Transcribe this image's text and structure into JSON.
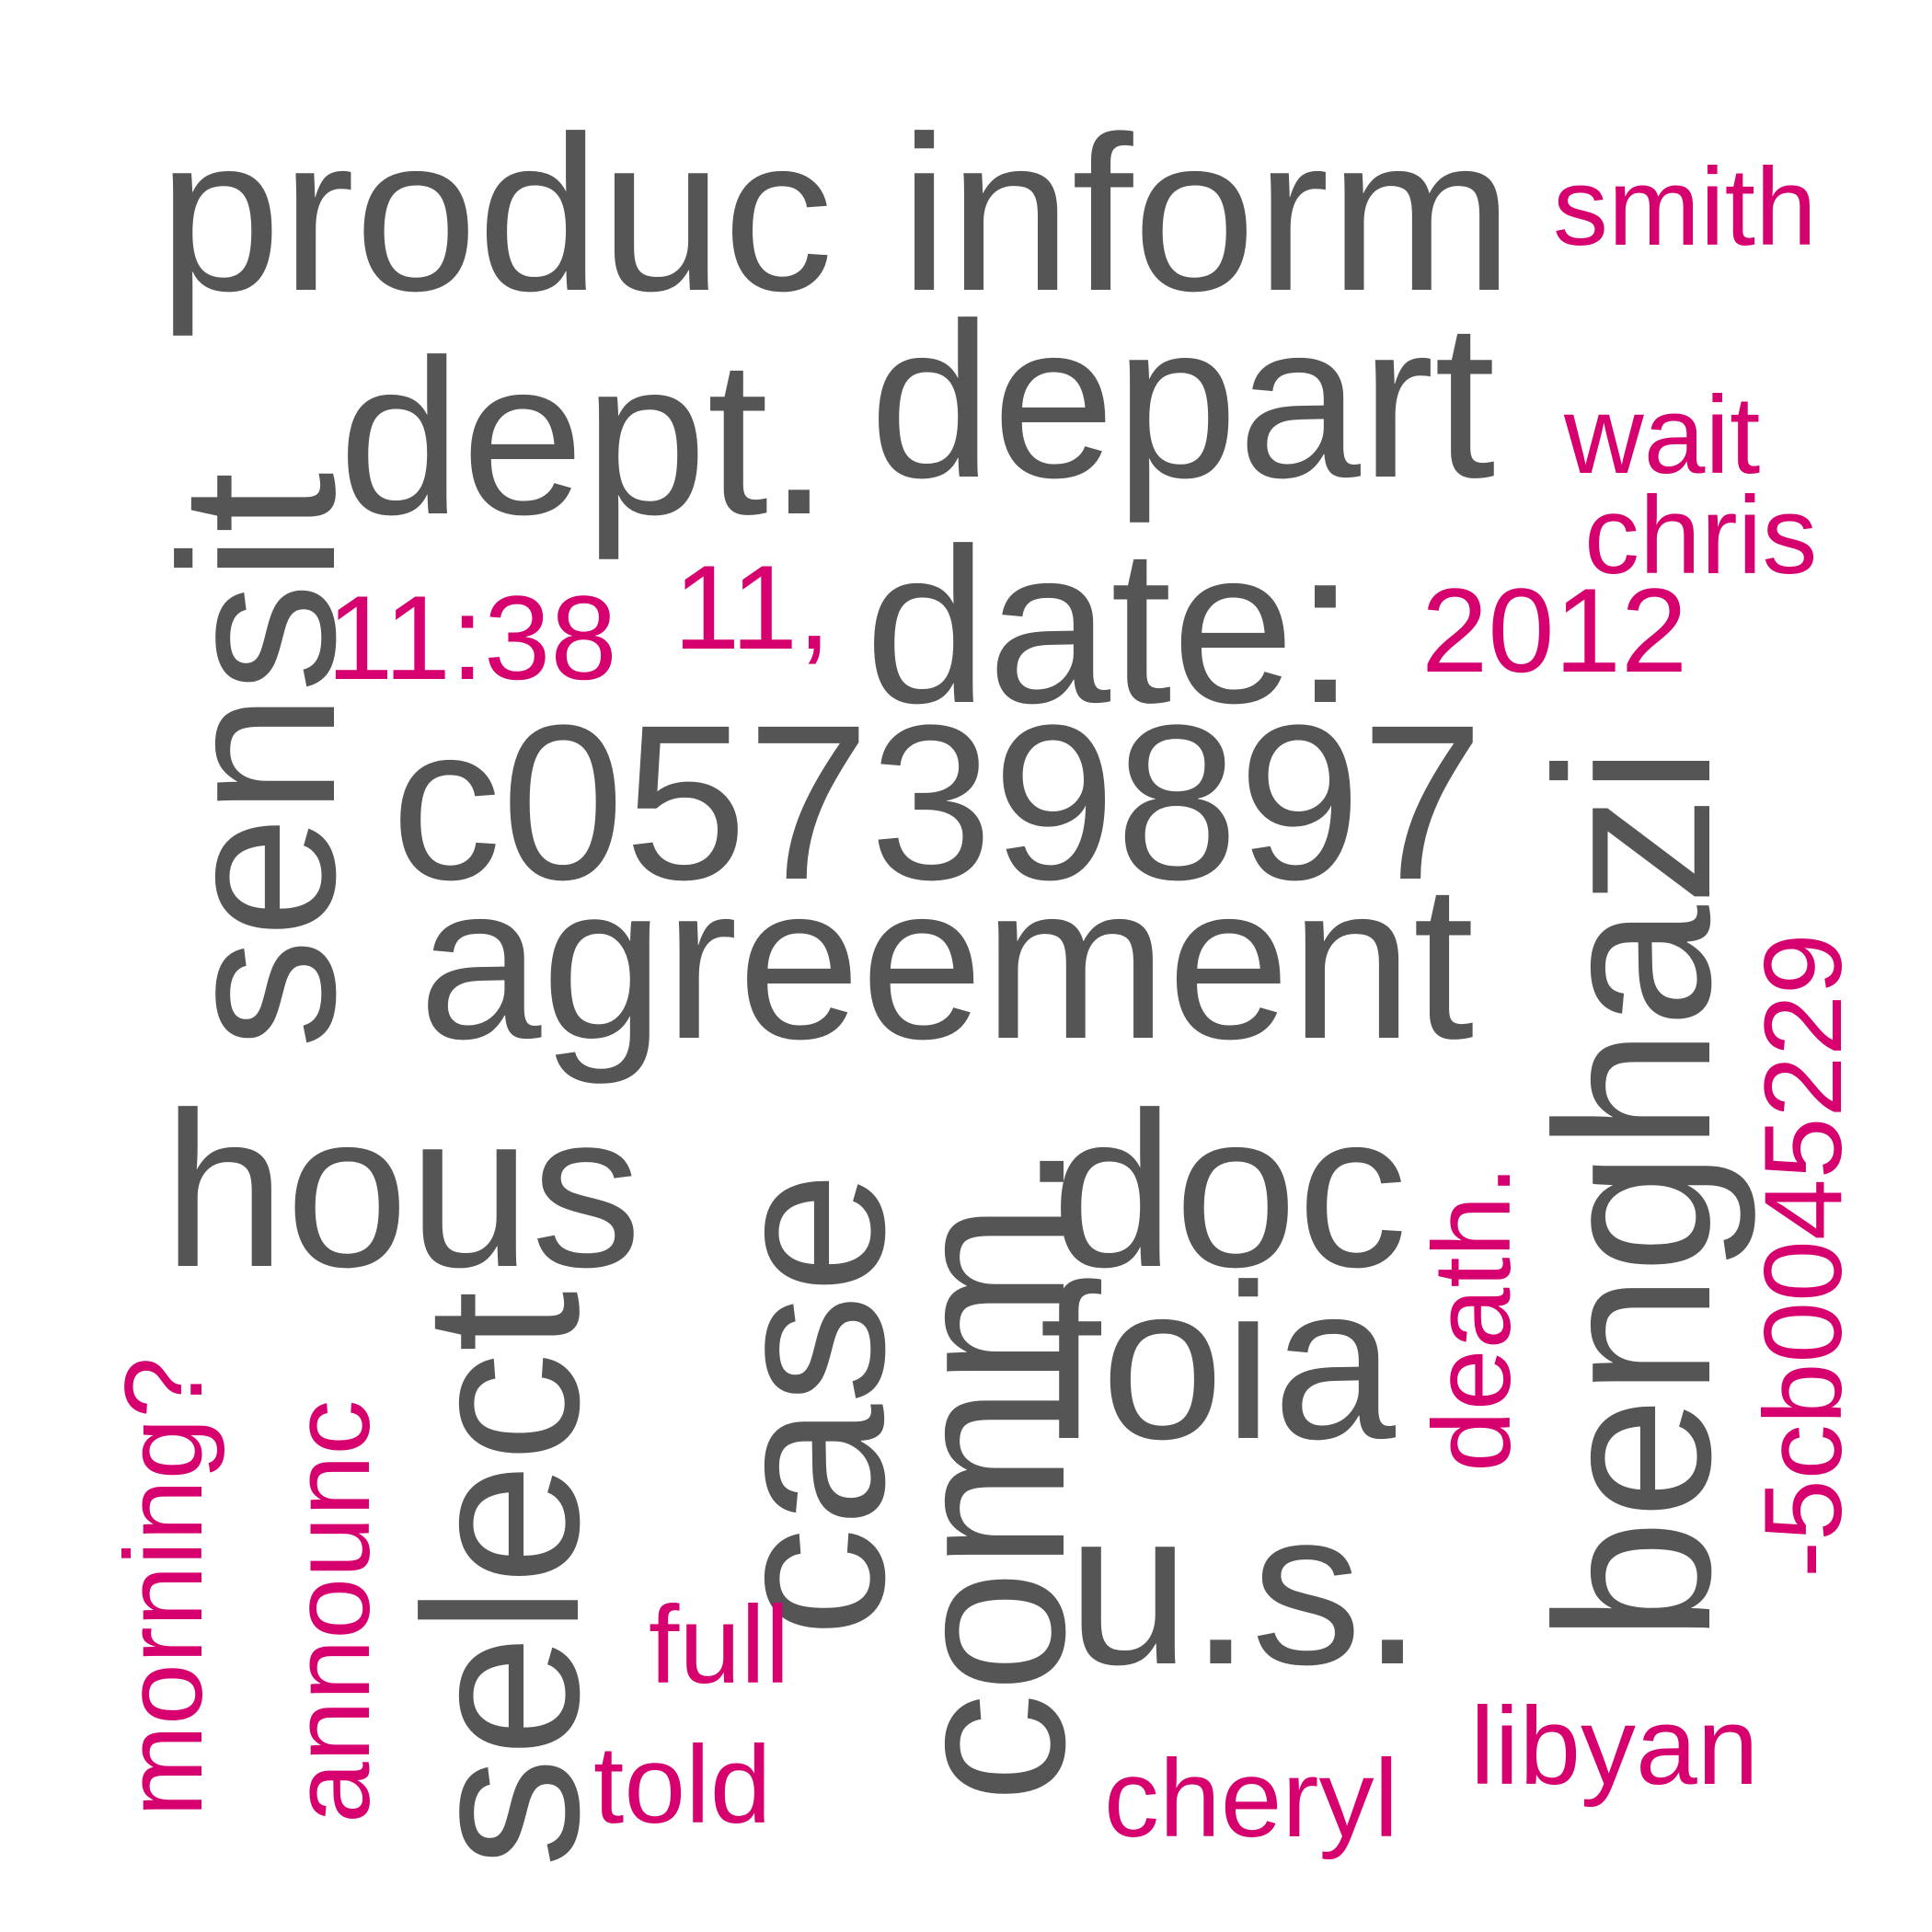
{
  "colors": {
    "primary": "#555555",
    "accent": "#d6006e",
    "background": "#ffffff"
  },
  "words": {
    "produc": "produc",
    "inform": "inform",
    "smith": "smith",
    "dept": "dept.",
    "depart": "depart",
    "wait": "wait",
    "chris": "chris",
    "sensit": "sensit",
    "time": "11:38",
    "eleven": "11,",
    "date": "date:",
    "year": "2012",
    "c05739897": "c05739897",
    "benghazi": "benghazi",
    "code": "-5cb0045229",
    "agreement": "agreement",
    "hous": "hous",
    "case": "case",
    "comm": "comm.",
    "doc": "doc",
    "death": "death.",
    "foia": "foia",
    "select": "select",
    "morning": "morning?",
    "announc": "announc",
    "us": "u.s.",
    "full": "full",
    "told": "told",
    "cheryl": "cheryl",
    "libyan": "libyan"
  }
}
